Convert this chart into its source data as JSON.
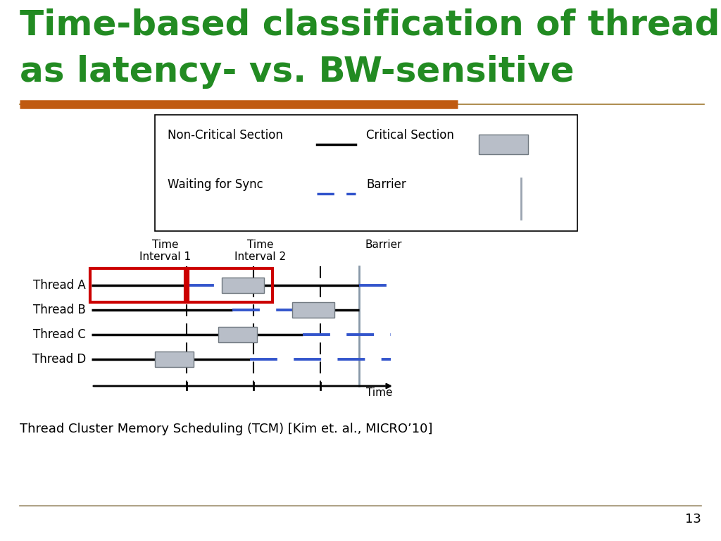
{
  "title_line1": "Time-based classification of threads",
  "title_line2": "as latency- vs. BW-sensitive",
  "title_color": "#228B22",
  "bg_color": "#FFFFFF",
  "orange_bar_color": "#C05A10",
  "separator_color": "#A07830",
  "critical_section_color": "#B8BEC8",
  "waiting_color": "#3355CC",
  "red_box_color": "#CC0000",
  "thread_labels": [
    "Thread A",
    "Thread B",
    "Thread C",
    "Thread D"
  ],
  "footnote": "Thread Cluster Memory Scheduling (TCM) [Kim et. al., MICRO’10]"
}
